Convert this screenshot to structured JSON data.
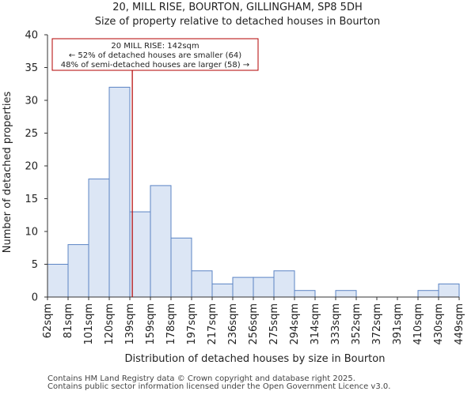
{
  "chart_data": {
    "type": "histogram",
    "title": "20, MILL RISE, BOURTON, GILLINGHAM, SP8 5DH",
    "subtitle": "Size of property relative to detached houses in Bourton",
    "xlabel": "Distribution of detached houses by size in Bourton",
    "ylabel": "Number of detached properties",
    "categories": [
      "62sqm",
      "81sqm",
      "101sqm",
      "120sqm",
      "139sqm",
      "159sqm",
      "178sqm",
      "197sqm",
      "217sqm",
      "236sqm",
      "256sqm",
      "275sqm",
      "294sqm",
      "314sqm",
      "333sqm",
      "352sqm",
      "372sqm",
      "391sqm",
      "410sqm",
      "430sqm",
      "449sqm"
    ],
    "values": [
      5,
      8,
      18,
      32,
      13,
      17,
      9,
      4,
      2,
      3,
      3,
      4,
      1,
      0,
      1,
      0,
      0,
      0,
      1,
      2
    ],
    "ylim": [
      0,
      40
    ],
    "yticks": [
      0,
      5,
      10,
      15,
      20,
      25,
      30,
      35,
      40
    ],
    "bar_color": "#dce6f5",
    "bar_edge_color": "#5b84c4",
    "marker": {
      "value_index": 4.12,
      "color": "#b30000",
      "lines": [
        "20 MILL RISE: 142sqm",
        "← 52% of detached houses are smaller (64)",
        "48% of semi-detached houses are larger (58) →"
      ]
    }
  },
  "footer": {
    "line1": "Contains HM Land Registry data © Crown copyright and database right 2025.",
    "line2": "Contains public sector information licensed under the Open Government Licence v3.0."
  }
}
